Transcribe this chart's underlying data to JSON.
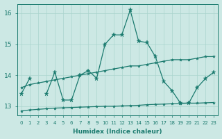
{
  "xlabel": "Humidex (Indice chaleur)",
  "x": [
    0,
    1,
    2,
    3,
    4,
    5,
    6,
    7,
    8,
    9,
    10,
    11,
    12,
    13,
    14,
    15,
    16,
    17,
    18,
    19,
    20,
    21,
    22,
    23
  ],
  "line_main": [
    13.4,
    13.9,
    null,
    13.4,
    14.1,
    13.2,
    13.2,
    14.0,
    14.15,
    13.9,
    15.0,
    15.3,
    15.3,
    16.1,
    15.1,
    15.05,
    14.6,
    13.8,
    13.5,
    13.1,
    13.1,
    13.6,
    13.9,
    14.1
  ],
  "line_upper": [
    13.6,
    13.7,
    13.75,
    13.8,
    13.85,
    13.9,
    13.95,
    14.0,
    14.05,
    14.1,
    14.15,
    14.2,
    14.25,
    14.3,
    14.3,
    14.35,
    14.4,
    14.45,
    14.5,
    14.5,
    14.5,
    14.55,
    14.6,
    14.6
  ],
  "line_lower": [
    12.85,
    12.88,
    12.9,
    12.92,
    12.94,
    12.95,
    12.96,
    12.97,
    12.98,
    12.99,
    13.0,
    13.0,
    13.01,
    13.02,
    13.03,
    13.05,
    13.06,
    13.07,
    13.08,
    13.09,
    13.1,
    13.1,
    13.11,
    13.12
  ],
  "line_color": "#1a7a6e",
  "bg_color": "#cce8e4",
  "grid_color": "#aad4ce",
  "ylim": [
    12.7,
    16.3
  ],
  "yticks": [
    13,
    14,
    15,
    16
  ],
  "xlim": [
    -0.5,
    23.5
  ]
}
